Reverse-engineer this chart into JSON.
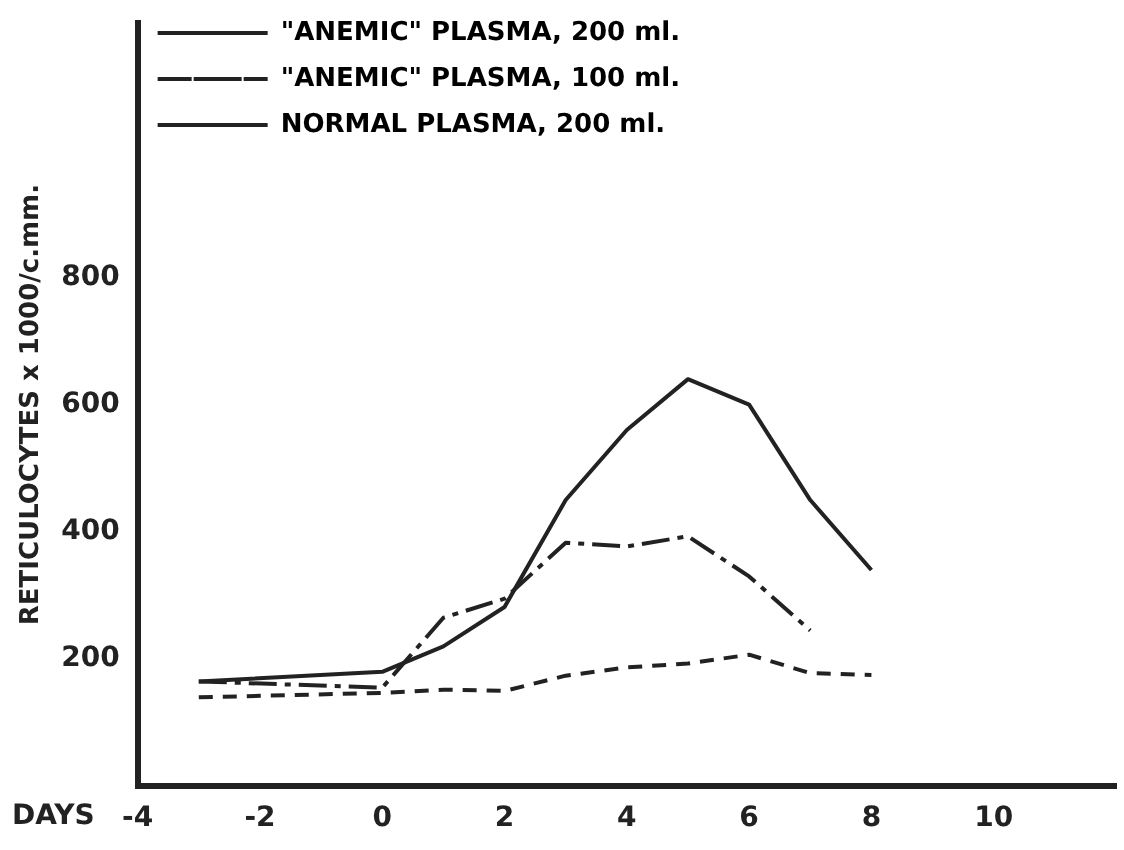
{
  "chart_data": {
    "type": "line",
    "xlabel": "DAYS",
    "ylabel": "RETICULOCYTES x 1000/c.mm.",
    "xlim": [
      -4,
      12
    ],
    "xticks": [
      -4,
      -2,
      0,
      2,
      4,
      6,
      8,
      10
    ],
    "ylim": [
      0,
      1200
    ],
    "yticks": [
      200,
      400,
      600,
      800
    ],
    "legend": "top",
    "marker": "none",
    "grid": false,
    "series": [
      {
        "name": "\"ANEMIC\" PLASMA, 200 ml.",
        "color": "#222222",
        "line_style": "solid",
        "x": [
          -3,
          0,
          1,
          2,
          3,
          4,
          5,
          6,
          7,
          8
        ],
        "values": [
          165,
          180,
          220,
          282,
          450,
          560,
          640,
          600,
          450,
          340
        ]
      },
      {
        "name": "\"ANEMIC\" PLASMA, 100 ml.",
        "color": "#222222",
        "line_style": "dashdot",
        "x": [
          -3,
          0,
          1,
          2,
          3,
          4,
          5,
          6,
          7
        ],
        "values": [
          165,
          155,
          265,
          295,
          383,
          377,
          393,
          330,
          245
        ]
      },
      {
        "name": "NORMAL PLASMA, 200 ml.",
        "color": "#222222",
        "line_style": "dashed",
        "x": [
          -3,
          0,
          1,
          2,
          3,
          4,
          5,
          6,
          7,
          8
        ],
        "values": [
          140,
          147,
          152,
          150,
          174,
          187,
          193,
          207,
          178,
          175
        ]
      }
    ]
  }
}
